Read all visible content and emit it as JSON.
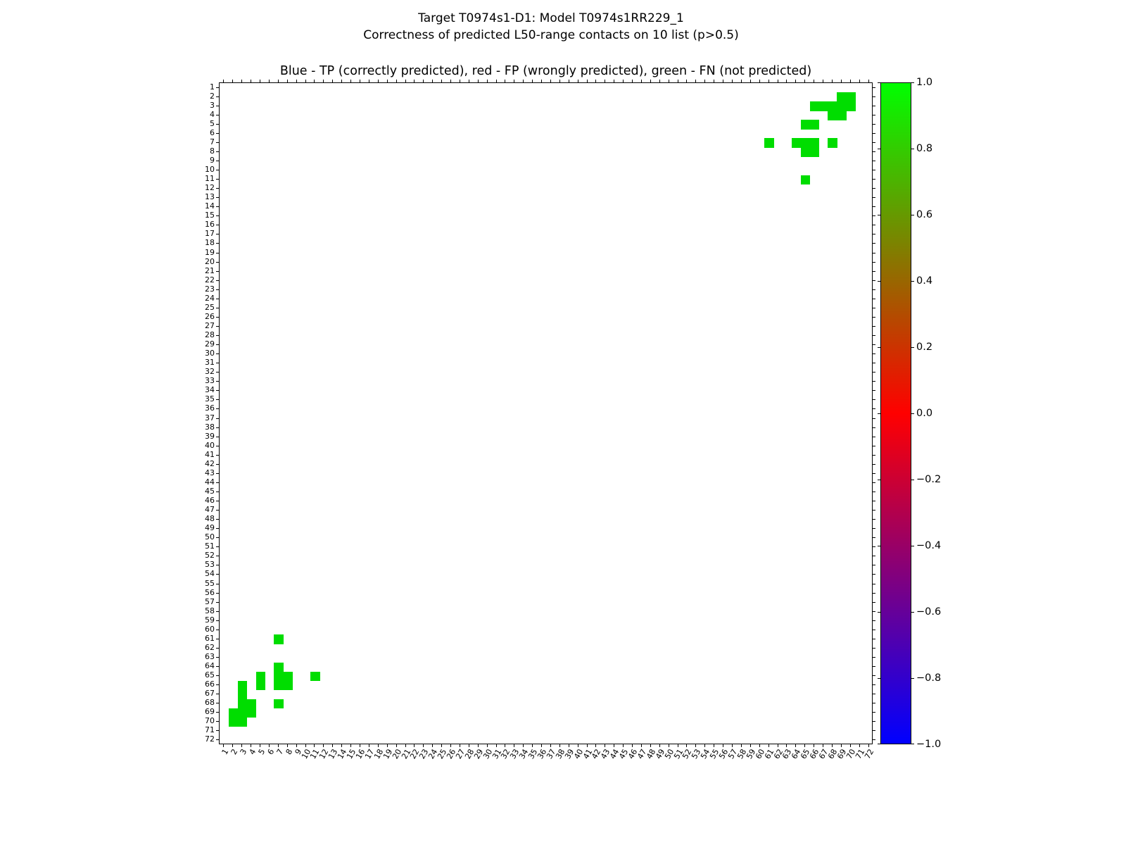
{
  "figure": {
    "title_line1": "Target T0974s1-D1: Model T0974s1RR229_1",
    "title_line2": "Correctness of predicted L50-range contacts on 10 list (p>0.5)",
    "axes_title": "Blue - TP (correctly predicted), red - FP (wrongly predicted), green - FN (not predicted)"
  },
  "chart_data": {
    "type": "heatmap",
    "title": "Blue - TP (correctly predicted), red - FP (wrongly predicted), green - FN (not predicted)",
    "suptitle": [
      "Target T0974s1-D1: Model T0974s1RR229_1",
      "Correctness of predicted L50-range contacts on 10 list (p>0.5)"
    ],
    "xlabel": "",
    "ylabel": "",
    "grid": false,
    "n_residues": 72,
    "symmetric": true,
    "x_ticks": [
      1,
      2,
      3,
      4,
      5,
      6,
      7,
      8,
      9,
      10,
      11,
      12,
      13,
      14,
      15,
      16,
      17,
      18,
      19,
      20,
      21,
      22,
      23,
      24,
      25,
      26,
      27,
      28,
      29,
      30,
      31,
      32,
      33,
      34,
      35,
      36,
      37,
      38,
      39,
      40,
      41,
      42,
      43,
      44,
      45,
      46,
      47,
      48,
      49,
      50,
      51,
      52,
      53,
      54,
      55,
      56,
      57,
      58,
      59,
      60,
      61,
      62,
      63,
      64,
      65,
      66,
      67,
      68,
      69,
      70,
      71,
      72
    ],
    "y_ticks": [
      1,
      2,
      3,
      4,
      5,
      6,
      7,
      8,
      9,
      10,
      11,
      12,
      13,
      14,
      15,
      16,
      17,
      18,
      19,
      20,
      21,
      22,
      23,
      24,
      25,
      26,
      27,
      28,
      29,
      30,
      31,
      32,
      33,
      34,
      35,
      36,
      37,
      38,
      39,
      40,
      41,
      42,
      43,
      44,
      45,
      46,
      47,
      48,
      49,
      50,
      51,
      52,
      53,
      54,
      55,
      56,
      57,
      58,
      59,
      60,
      61,
      62,
      63,
      64,
      65,
      66,
      67,
      68,
      69,
      70,
      71,
      72
    ],
    "legend": [
      {
        "class": "TP",
        "meaning": "correctly predicted",
        "color_name": "blue"
      },
      {
        "class": "FP",
        "meaning": "wrongly predicted",
        "color_name": "red"
      },
      {
        "class": "FN",
        "meaning": "not predicted",
        "color_name": "green"
      }
    ],
    "colors": {
      "fn_cell": "#00dd00",
      "background": "#ffffff",
      "axis": "#000000"
    },
    "tp_contacts": [],
    "fp_contacts": [],
    "fn_contacts": [
      [
        2,
        69
      ],
      [
        2,
        70
      ],
      [
        3,
        66
      ],
      [
        3,
        67
      ],
      [
        3,
        68
      ],
      [
        3,
        69
      ],
      [
        3,
        70
      ],
      [
        4,
        68
      ],
      [
        4,
        69
      ],
      [
        5,
        65
      ],
      [
        5,
        66
      ],
      [
        7,
        61
      ],
      [
        7,
        64
      ],
      [
        7,
        65
      ],
      [
        7,
        66
      ],
      [
        7,
        68
      ],
      [
        8,
        65
      ],
      [
        8,
        66
      ],
      [
        11,
        65
      ]
    ],
    "colorbar": {
      "min": -1.0,
      "max": 1.0,
      "gradient_stops_top_to_bottom": [
        "#00ff00",
        "#ff0000",
        "#0000ff"
      ],
      "ticks": [
        {
          "label": "1.0",
          "value": 1.0
        },
        {
          "label": "0.8",
          "value": 0.8
        },
        {
          "label": "0.6",
          "value": 0.6
        },
        {
          "label": "0.4",
          "value": 0.4
        },
        {
          "label": "0.2",
          "value": 0.2
        },
        {
          "label": "0.0",
          "value": 0.0
        },
        {
          "label": "−0.2",
          "value": -0.2
        },
        {
          "label": "−0.4",
          "value": -0.4
        },
        {
          "label": "−0.6",
          "value": -0.6
        },
        {
          "label": "−0.8",
          "value": -0.8
        },
        {
          "label": "−1.0",
          "value": -1.0
        }
      ]
    }
  }
}
